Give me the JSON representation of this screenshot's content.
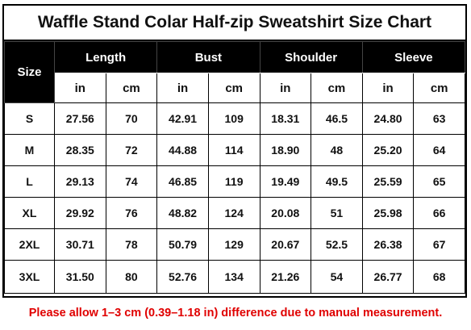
{
  "title": "Waffle Stand Colar Half-zip Sweatshirt Size Chart",
  "header": {
    "size_label": "Size",
    "groups": [
      "Length",
      "Bust",
      "Shoulder",
      "Sleeve"
    ],
    "units": [
      "in",
      "cm",
      "in",
      "cm",
      "in",
      "cm",
      "in",
      "cm"
    ]
  },
  "rows": [
    {
      "size": "S",
      "values": [
        "27.56",
        "70",
        "42.91",
        "109",
        "18.31",
        "46.5",
        "24.80",
        "63"
      ]
    },
    {
      "size": "M",
      "values": [
        "28.35",
        "72",
        "44.88",
        "114",
        "18.90",
        "48",
        "25.20",
        "64"
      ]
    },
    {
      "size": "L",
      "values": [
        "29.13",
        "74",
        "46.85",
        "119",
        "19.49",
        "49.5",
        "25.59",
        "65"
      ]
    },
    {
      "size": "XL",
      "values": [
        "29.92",
        "76",
        "48.82",
        "124",
        "20.08",
        "51",
        "25.98",
        "66"
      ]
    },
    {
      "size": "2XL",
      "values": [
        "30.71",
        "78",
        "50.79",
        "129",
        "20.67",
        "52.5",
        "26.38",
        "67"
      ]
    },
    {
      "size": "3XL",
      "values": [
        "31.50",
        "80",
        "52.76",
        "134",
        "21.26",
        "54",
        "26.77",
        "68"
      ]
    }
  ],
  "note": "Please allow 1–3 cm (0.39–1.18 in) difference due to manual measurement."
}
